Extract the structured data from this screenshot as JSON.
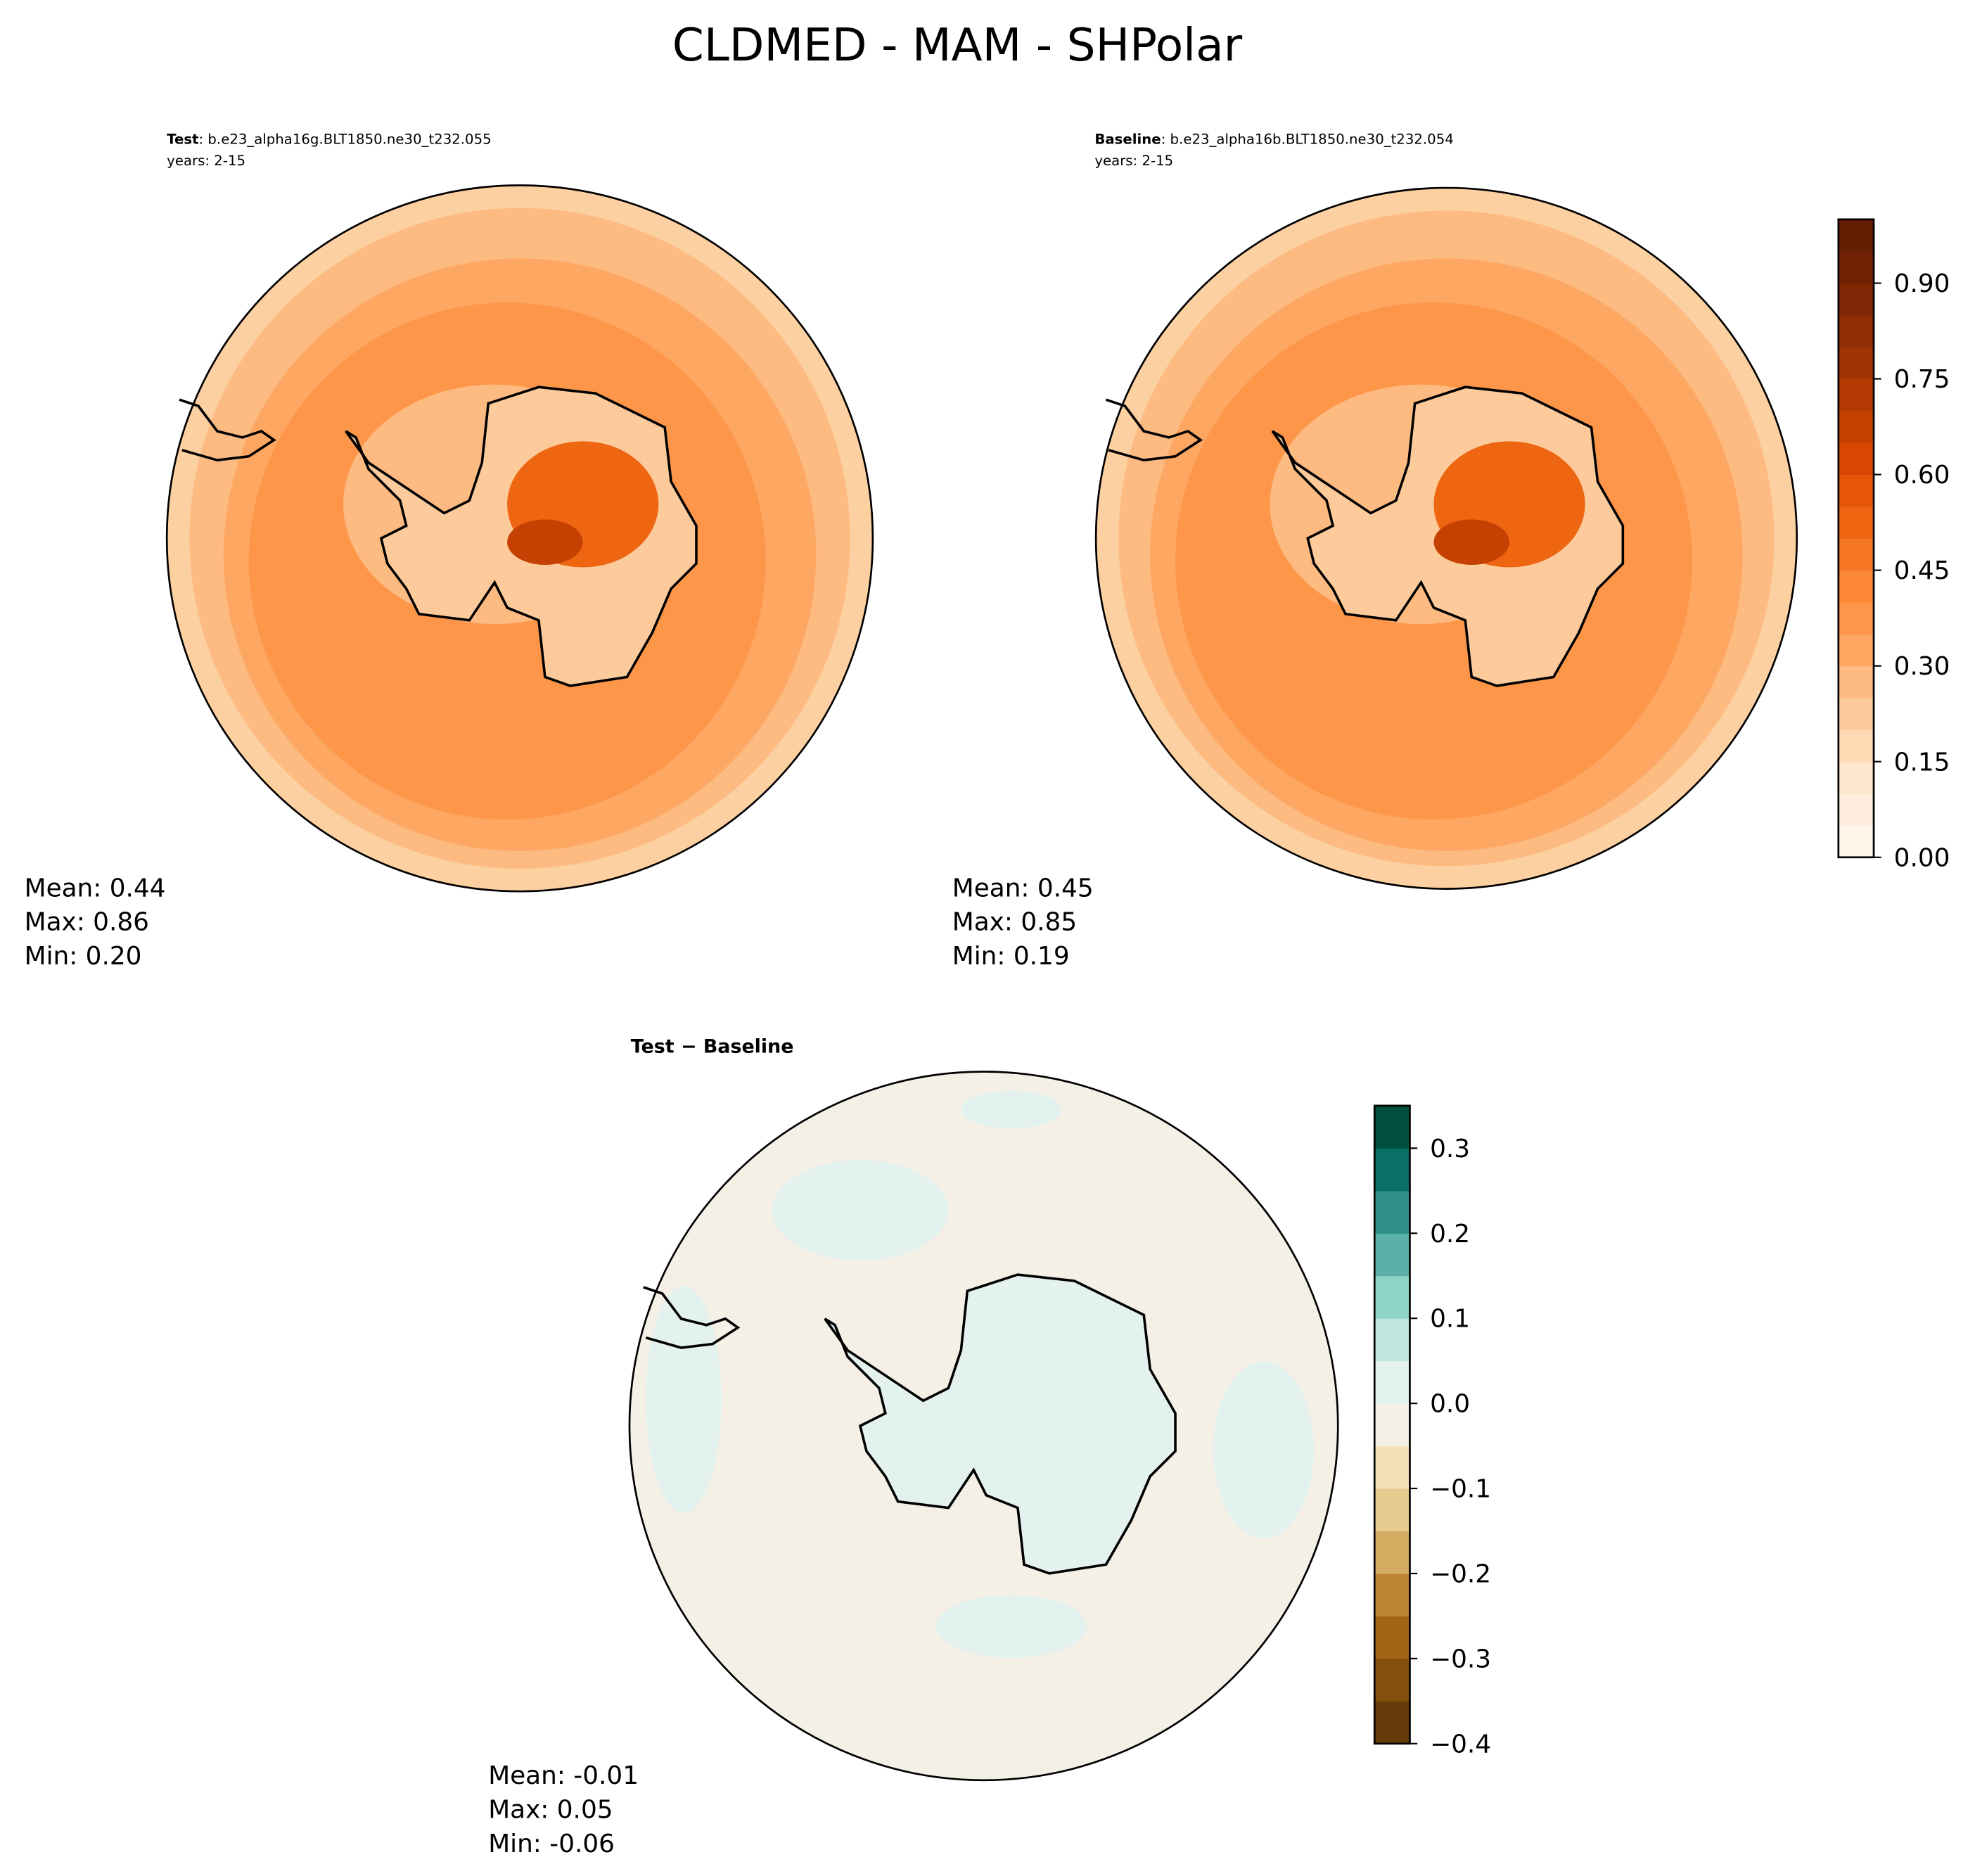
{
  "title": "CLDMED - MAM - SHPolar",
  "panels": [
    {
      "name": "Test",
      "case": ": b.e23_alpha16g.BLT1850.ne30_t232.055",
      "years": "years: 2-15",
      "stats": [
        "Mean:  0.44",
        "Max:  0.86",
        "Min:  0.20"
      ]
    },
    {
      "name": "Baseline",
      "case": ": b.e23_alpha16b.BLT1850.ne30_t232.054",
      "years": "years: 2-15",
      "stats": [
        "Mean:  0.45",
        "Max:  0.85",
        "Min:  0.19"
      ]
    },
    {
      "name": "Test − Baseline",
      "stats": [
        "Mean: -0.01",
        "Max:  0.05",
        "Min: -0.06"
      ]
    }
  ],
  "chart_data": [
    {
      "type": "colorbar",
      "ylim": [
        0,
        1
      ],
      "yticks": [
        {
          "value": 0,
          "label": "0.00"
        },
        {
          "value": 0.15,
          "label": "0.15"
        },
        {
          "value": 0.3,
          "label": "0.30"
        },
        {
          "value": 0.45,
          "label": "0.45"
        },
        {
          "value": 0.6,
          "label": "0.60"
        },
        {
          "value": 0.75,
          "label": "0.75"
        },
        {
          "value": 0.9,
          "label": "0.90"
        }
      ],
      "colors": [
        "#fff5eb",
        "#feeddc",
        "#fee6cd",
        "#fdd9b4",
        "#fdcb9b",
        "#fdba81",
        "#fda762",
        "#fd9649",
        "#fb8634",
        "#f67723",
        "#ee6512",
        "#e55609",
        "#d74701",
        "#c54102",
        "#b33a02",
        "#a03403",
        "#8f2d04",
        "#7f2704",
        "#722204",
        "#651d04"
      ]
    },
    {
      "type": "colorbar",
      "ylim": [
        -0.4,
        0.35
      ],
      "yticks": [
        {
          "value": -0.4,
          "label": "−0.4"
        },
        {
          "value": -0.3,
          "label": "−0.3"
        },
        {
          "value": -0.2,
          "label": "−0.2"
        },
        {
          "value": -0.1,
          "label": "−0.1"
        },
        {
          "value": 0,
          "label": "0.0"
        },
        0.1,
        0.2,
        0.3
      ],
      "colors": [
        "#673a0a",
        "#83500b",
        "#a16518",
        "#bd8431",
        "#d4ad62",
        "#e6cc8e",
        "#f3e2b8",
        "#f5f0e6",
        "#e3f2ef",
        "#bfe6df",
        "#8fd3c7",
        "#5bb1a8",
        "#2d8f86",
        "#087066",
        "#01503f"
      ]
    }
  ]
}
